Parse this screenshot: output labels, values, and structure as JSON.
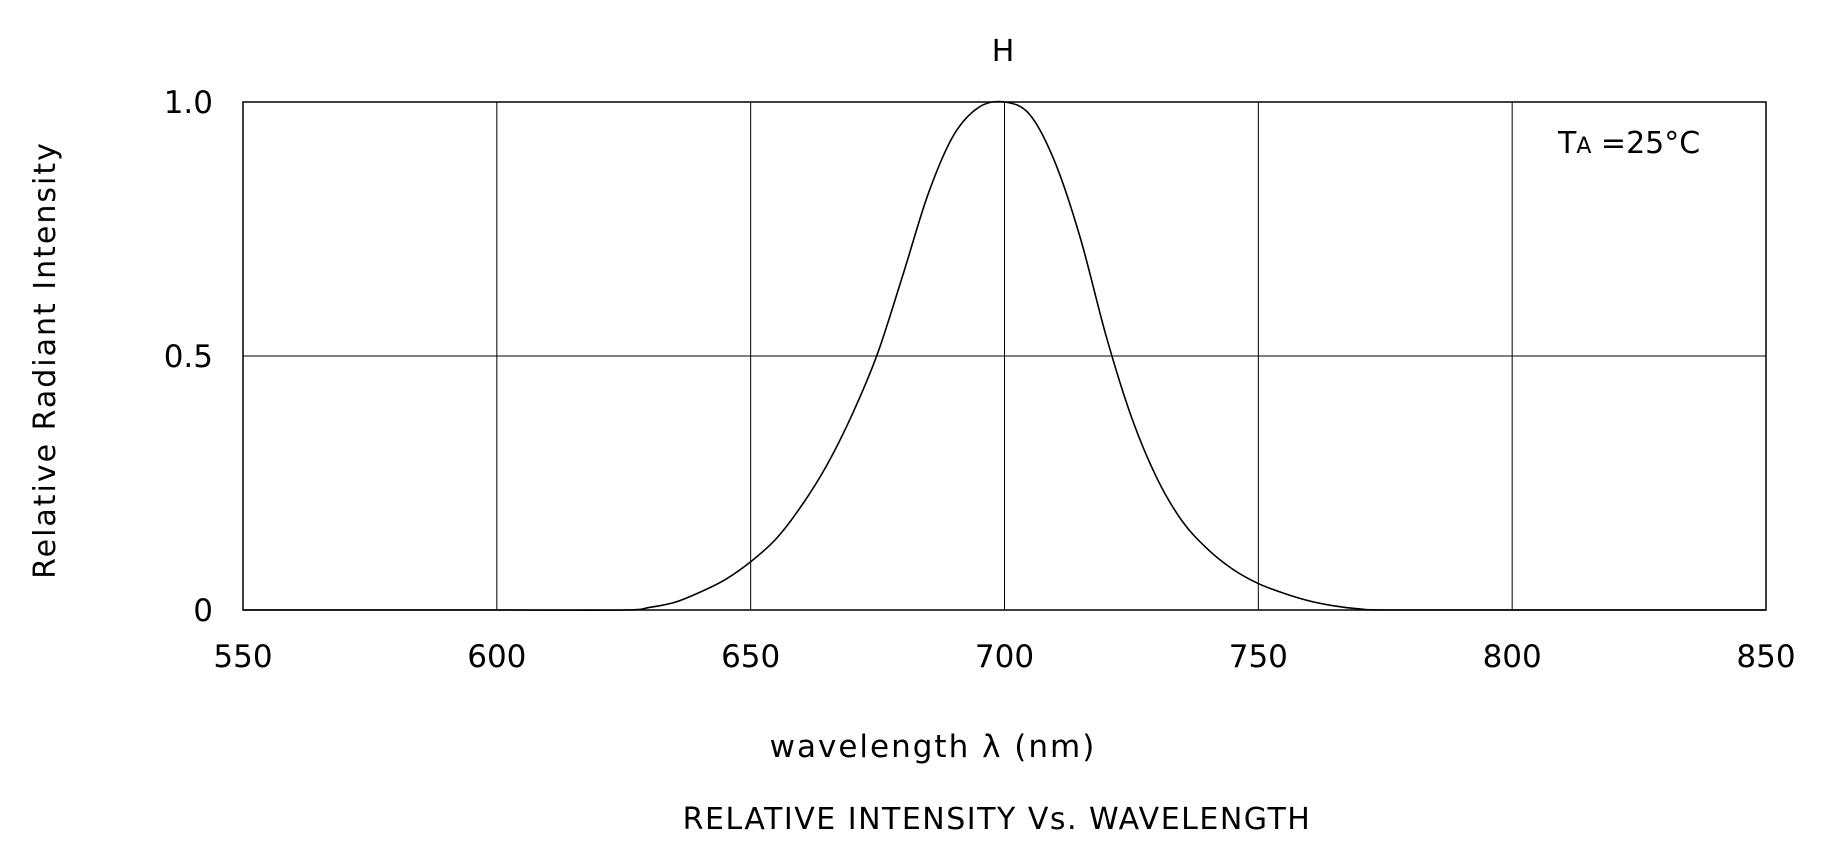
{
  "chart_data": {
    "type": "line",
    "title": "RELATIVE INTENSITY Vs. WAVELENGTH",
    "header_label": "H",
    "xlabel": "wavelength λ (nm)",
    "ylabel": "Relative Radiant Intensity",
    "annotation": {
      "prefix": "T",
      "subscript": "A",
      "suffix": " =25°C"
    },
    "xlim": [
      550,
      850
    ],
    "ylim": [
      0,
      1.0
    ],
    "x_ticks": [
      550,
      600,
      650,
      700,
      750,
      800,
      850
    ],
    "x_tick_labels": [
      "550",
      "600",
      "650",
      "700",
      "750",
      "800",
      "850"
    ],
    "y_ticks": [
      0,
      0.5,
      1.0
    ],
    "y_tick_labels": [
      "0",
      "0.5",
      "1.0"
    ],
    "grid": true,
    "series": [
      {
        "x": [
          550,
          600,
          625,
          630,
          635,
          640,
          645,
          650,
          655,
          660,
          665,
          670,
          675,
          680,
          685,
          690,
          695,
          700,
          705,
          710,
          715,
          720,
          725,
          730,
          735,
          740,
          745,
          750,
          755,
          760,
          765,
          770,
          775,
          800,
          850
        ],
        "y": [
          0,
          0,
          0,
          0.005,
          0.015,
          0.035,
          0.06,
          0.095,
          0.14,
          0.205,
          0.285,
          0.385,
          0.505,
          0.66,
          0.82,
          0.935,
          0.99,
          1.0,
          0.975,
          0.88,
          0.73,
          0.54,
          0.38,
          0.26,
          0.175,
          0.12,
          0.08,
          0.052,
          0.033,
          0.018,
          0.008,
          0.002,
          0,
          0,
          0
        ]
      }
    ]
  }
}
